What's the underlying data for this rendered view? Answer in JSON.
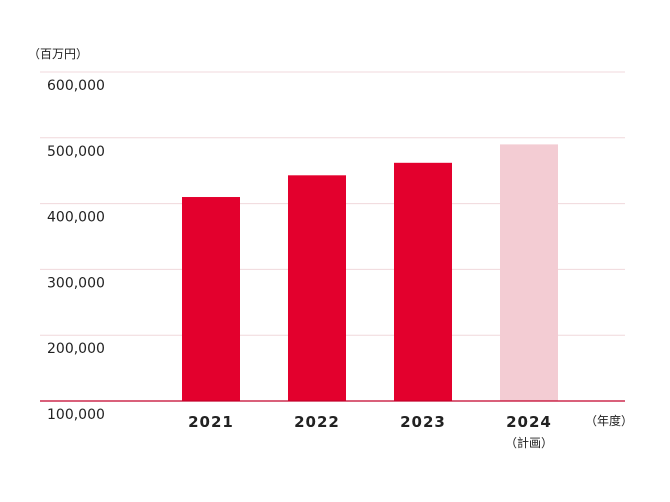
{
  "chart_data": {
    "type": "bar",
    "y_unit_label": "（百万円）",
    "x_unit_label": "（年度）",
    "categories": [
      "2021",
      "2022",
      "2023",
      "2024"
    ],
    "category_notes": [
      "",
      "",
      "",
      "（計画）"
    ],
    "values": [
      410000,
      443000,
      462000,
      490000
    ],
    "yticks": [
      "100,000",
      "200,000",
      "300,000",
      "400,000",
      "500,000",
      "600,000"
    ],
    "ylim": [
      100000,
      600000
    ],
    "grid": true,
    "colors": {
      "actual": "#e3002d",
      "plan": "#f3ccd3",
      "grid": "#f0d8dc",
      "baseline": "#c2002a"
    },
    "bar_styles": [
      "actual",
      "actual",
      "actual",
      "plan"
    ]
  }
}
